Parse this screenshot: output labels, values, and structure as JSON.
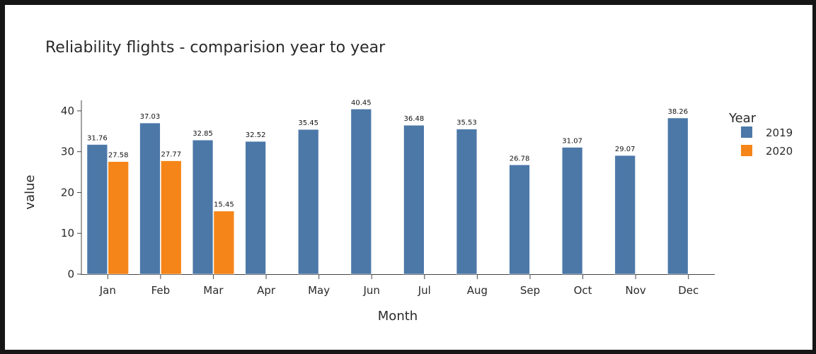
{
  "chart_data": {
    "type": "bar",
    "title": "Reliability flights - comparision year to year",
    "xlabel": "Month",
    "ylabel": "value",
    "categories": [
      "Jan",
      "Feb",
      "Mar",
      "Apr",
      "May",
      "Jun",
      "Jul",
      "Aug",
      "Sep",
      "Oct",
      "Nov",
      "Dec"
    ],
    "series": [
      {
        "name": "2019",
        "color": "#4c78a8",
        "values": [
          31.76,
          37.03,
          32.85,
          32.52,
          35.45,
          40.45,
          36.48,
          35.53,
          26.78,
          31.07,
          29.07,
          38.26
        ],
        "labels": [
          "31.76",
          "37.03",
          "32.85",
          "32.52",
          "35.45",
          "40.45",
          "36.48",
          "35.53",
          "26.78",
          "31.07",
          "29.07",
          "38.26"
        ]
      },
      {
        "name": "2020",
        "color": "#f58518",
        "values": [
          27.58,
          27.77,
          15.45,
          null,
          null,
          null,
          null,
          null,
          null,
          null,
          null,
          null
        ],
        "labels": [
          "27.58",
          "27.77",
          "15.45",
          "",
          "",
          "",
          "",
          "",
          "",
          "",
          "",
          ""
        ]
      }
    ],
    "ylim": [
      0,
      42.58
    ],
    "yticks": [
      "0",
      "10",
      "20",
      "30",
      "40"
    ],
    "legend": {
      "title": "Year",
      "position": "right"
    },
    "grid": false
  }
}
